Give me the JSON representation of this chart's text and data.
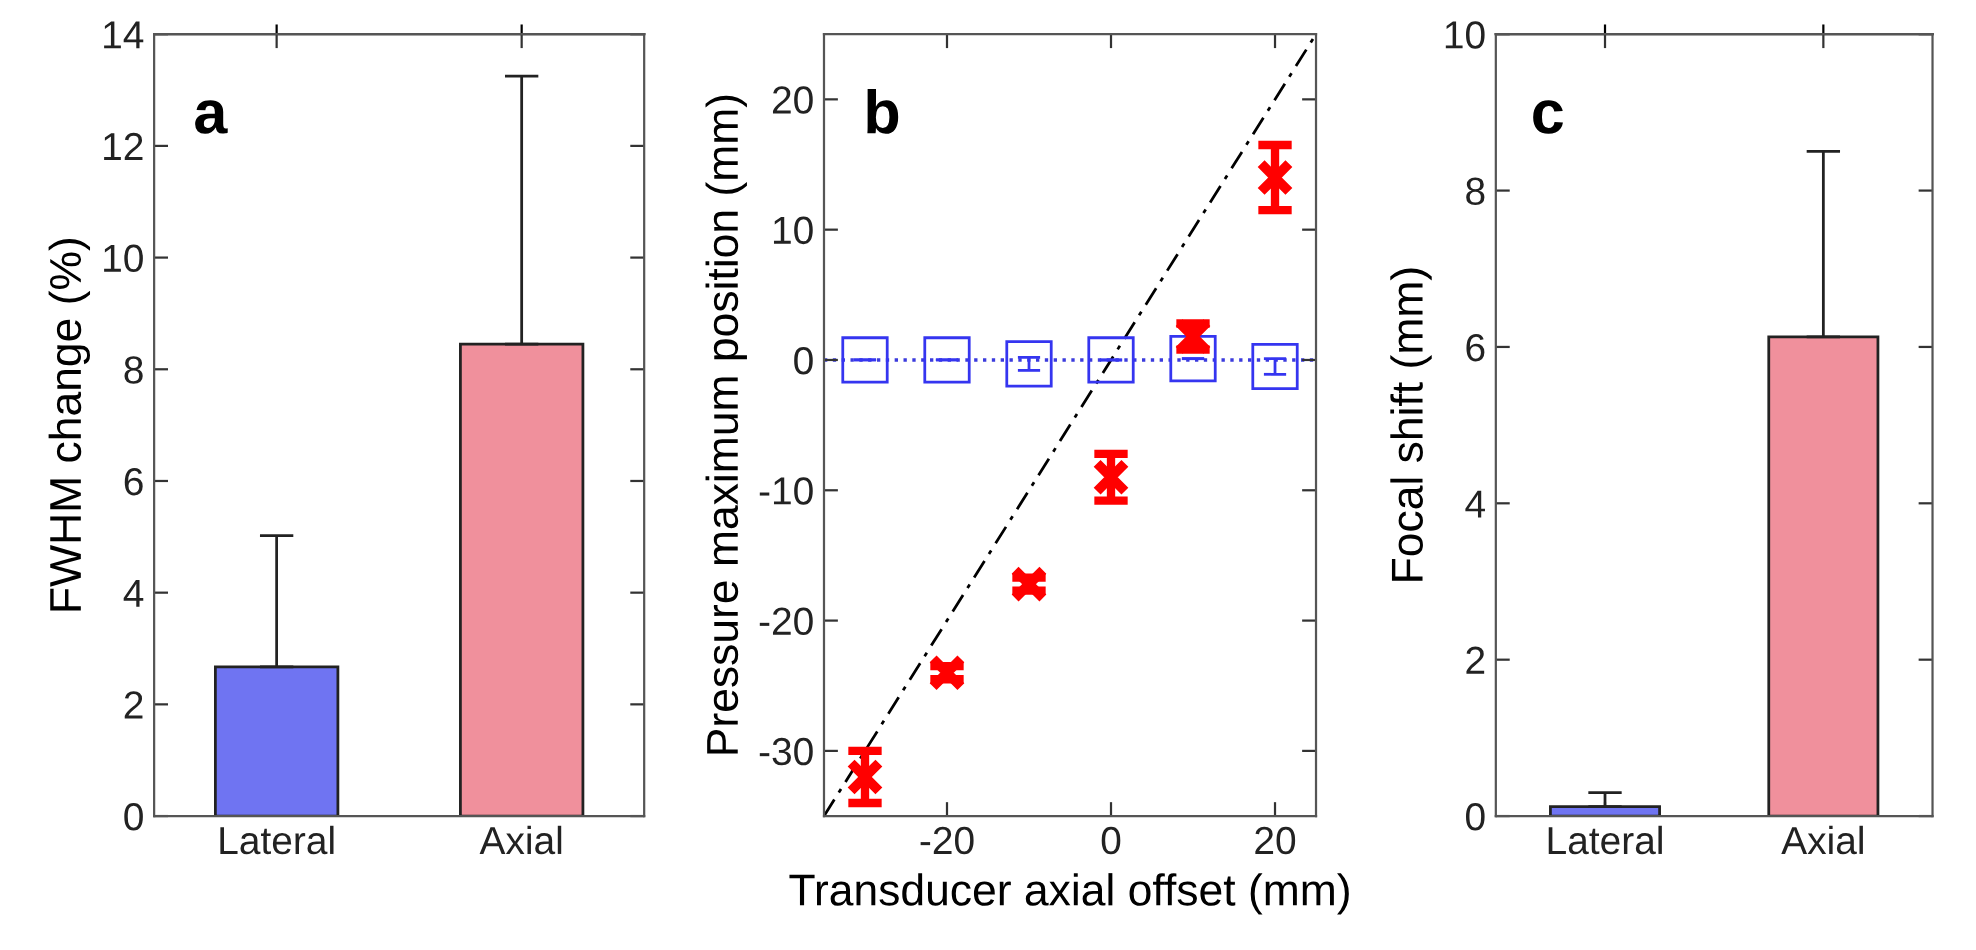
{
  "chart_data": [
    {
      "type": "bar",
      "ylabel": "FWHM change (%)",
      "annotations": [
        "a"
      ],
      "categories": [
        "Lateral",
        "Axial"
      ],
      "values": [
        2.67,
        8.45
      ],
      "colors": [
        "#6f74f2",
        "#f0909c"
      ],
      "errors": [
        [
          2.67,
          5.02
        ],
        [
          8.45,
          13.25
        ]
      ],
      "ylim": [
        0,
        14
      ],
      "yticks": [
        0,
        2,
        4,
        6,
        8,
        10,
        12,
        14
      ],
      "grid": false
    },
    {
      "type": "scatter",
      "xlabel": "Transducer axial offset (mm)",
      "ylabel": "Pressure maximum position (mm)",
      "annotations": [
        "b"
      ],
      "xlim": [
        -35,
        25
      ],
      "ylim": [
        -35,
        25
      ],
      "xticks": [
        -20,
        0,
        20
      ],
      "yticks": [
        -30,
        -20,
        -10,
        0,
        10,
        20
      ],
      "grid": false,
      "ref_lines": [
        {
          "axis": "y",
          "value": 0,
          "color": "#3b3bdd",
          "line_style": "dotted"
        }
      ],
      "series": [
        {
          "type": "line",
          "color": "#000000",
          "line_style": "dashed",
          "marker": "none",
          "x": [
            -35,
            25
          ],
          "values": [
            -35,
            25
          ]
        },
        {
          "type": "scatter",
          "color": "#3535f0",
          "marker": "square",
          "x": [
            -30,
            -20,
            -10,
            0,
            10,
            20
          ],
          "values": [
            0,
            0,
            -0.3,
            0,
            0.1,
            -0.5
          ],
          "errors": [
            null,
            null,
            0.5,
            null,
            null,
            0.6
          ]
        },
        {
          "type": "scatter",
          "color": "#ff0000",
          "marker": "cross",
          "x": [
            -30,
            -20,
            -10,
            0,
            10,
            20
          ],
          "values": [
            -32,
            -24,
            -17.2,
            -9,
            1.8,
            14
          ],
          "errors": [
            2,
            0.5,
            0.5,
            1.8,
            1,
            2.5
          ]
        }
      ]
    },
    {
      "type": "bar",
      "ylabel": "Focal shift (mm)",
      "annotations": [
        "c"
      ],
      "categories": [
        "Lateral",
        "Axial"
      ],
      "values": [
        0.12,
        6.13
      ],
      "colors": [
        "#6f74f2",
        "#f0909c"
      ],
      "errors": [
        [
          0.12,
          0.3
        ],
        [
          6.13,
          8.5
        ]
      ],
      "ylim": [
        0,
        10
      ],
      "yticks": [
        0,
        2,
        4,
        6,
        8,
        10
      ],
      "grid": false
    }
  ]
}
